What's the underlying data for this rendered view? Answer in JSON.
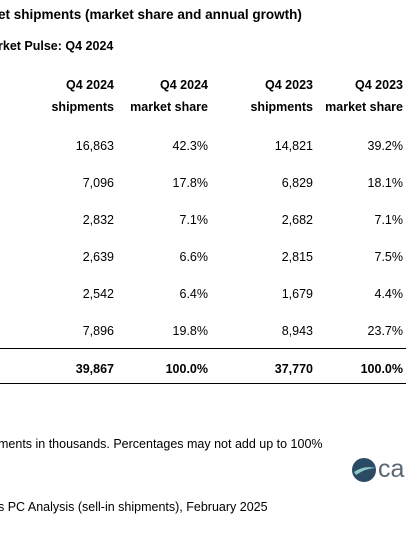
{
  "header": {
    "title": "et shipments (market share and annual growth)",
    "subtitle": "rket Pulse: Q4 2024"
  },
  "table": {
    "columns": [
      {
        "period": "Q4 2024",
        "metric": "shipments"
      },
      {
        "period": "Q4 2024",
        "metric": "market share"
      },
      {
        "period": "Q4 2023",
        "metric": "shipments"
      },
      {
        "period": "Q4 2023",
        "metric": "market share"
      }
    ],
    "rows": [
      [
        "16,863",
        "42.3%",
        "14,821",
        "39.2%"
      ],
      [
        "7,096",
        "17.8%",
        "6,829",
        "18.1%"
      ],
      [
        "2,832",
        "7.1%",
        "2,682",
        "7.1%"
      ],
      [
        "2,639",
        "6.6%",
        "2,815",
        "7.5%"
      ],
      [
        "2,542",
        "6.4%",
        "1,679",
        "4.4%"
      ],
      [
        "7,896",
        "19.8%",
        "8,943",
        "23.7%"
      ]
    ],
    "total": [
      "39,867",
      "100.0%",
      "37,770",
      "100.0%"
    ]
  },
  "footer": {
    "note": "ments in thousands. Percentages may not add up to 100%",
    "source": "s PC Analysis (sell-in shipments), February 2025",
    "logo_text": "ca"
  },
  "colors": {
    "logo_dark": "#2b4a63",
    "logo_light": "#8fc8c6",
    "logo_text": "#5a6670"
  }
}
